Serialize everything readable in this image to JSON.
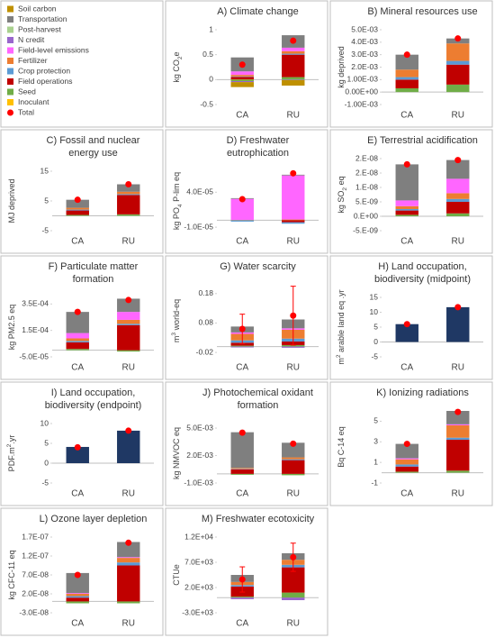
{
  "legend": {
    "series": [
      {
        "name": "Soil carbon",
        "color": "#bf9000"
      },
      {
        "name": "Transportation",
        "color": "#7f7f7f"
      },
      {
        "name": "Post-harvest",
        "color": "#a9d18e"
      },
      {
        "name": "N credit",
        "color": "#9966cc"
      },
      {
        "name": "Field-level emissions",
        "color": "#ff66ff"
      },
      {
        "name": "Fertilizer",
        "color": "#ed7d31"
      },
      {
        "name": "Crop protection",
        "color": "#5b9bd5"
      },
      {
        "name": "Field operations",
        "color": "#c00000"
      },
      {
        "name": "Seed",
        "color": "#70ad47"
      },
      {
        "name": "Inoculant",
        "color": "#ffc000"
      }
    ],
    "total": {
      "name": "Total",
      "color": "#ff0000"
    }
  },
  "chart_data": [
    {
      "type": "stacked_bar",
      "title": [
        "A) Climate change"
      ],
      "ylabel": [
        {
          "text": "kg CO"
        },
        {
          "text": "2",
          "shift": "sub"
        },
        {
          "text": "e"
        }
      ],
      "categories": [
        "CA",
        "RU"
      ],
      "ylim": [
        -0.5,
        1
      ],
      "yticks": [
        -0.5,
        0,
        0.5,
        1
      ],
      "series": [
        {
          "values": [
            -0.1,
            -0.11
          ]
        },
        {
          "values": [
            0.28,
            0.25
          ]
        },
        {
          "values": [
            0,
            0
          ]
        },
        {
          "values": [
            -0.02,
            -0.01
          ]
        },
        {
          "values": [
            0.07,
            0.07
          ]
        },
        {
          "values": [
            0.03,
            0.05
          ]
        },
        {
          "values": [
            0.01,
            0.02
          ]
        },
        {
          "values": [
            0.05,
            0.45
          ]
        },
        {
          "values": [
            -0.03,
            0.05
          ]
        },
        {
          "values": [
            0.005,
            0
          ]
        }
      ],
      "total": [
        0.3,
        0.78
      ]
    },
    {
      "type": "stacked_bar",
      "title": [
        "B) Mineral resources use"
      ],
      "ylabel": [
        {
          "text": "kg deprived"
        }
      ],
      "categories": [
        "CA",
        "RU"
      ],
      "ylim": [
        -0.001,
        0.005
      ],
      "yticks": [
        {
          "value": -0.001,
          "label": "-1.00E-03"
        },
        {
          "value": 0,
          "label": "0.00E+00"
        },
        {
          "value": 0.001,
          "label": "1.00E-03"
        },
        {
          "value": 0.002,
          "label": "2.0E-03"
        },
        {
          "value": 0.003,
          "label": "3.0E-03"
        },
        {
          "value": 0.004,
          "label": "4.0E-03"
        },
        {
          "value": 0.005,
          "label": "5.0E-03"
        }
      ],
      "series": [
        {
          "values": [
            0,
            0
          ]
        },
        {
          "values": [
            0.0012,
            0.0004
          ]
        },
        {
          "values": [
            0,
            0
          ]
        },
        {
          "values": [
            0,
            0
          ]
        },
        {
          "values": [
            0,
            0
          ]
        },
        {
          "values": [
            0.0006,
            0.0014
          ]
        },
        {
          "values": [
            0.0002,
            0.0003
          ]
        },
        {
          "values": [
            0.0007,
            0.0016
          ]
        },
        {
          "values": [
            0.0003,
            0.0006
          ]
        },
        {
          "values": [
            0,
            0
          ]
        }
      ],
      "total": [
        0.003,
        0.0043
      ]
    },
    {
      "type": "stacked_bar",
      "title": [
        "C) Fossil and nuclear",
        "energy use"
      ],
      "ylabel": [
        {
          "text": "MJ deprived"
        }
      ],
      "categories": [
        "CA",
        "RU"
      ],
      "ylim": [
        -5,
        15
      ],
      "yticks": [
        -5,
        5,
        15
      ],
      "series": [
        {
          "values": [
            0,
            0
          ]
        },
        {
          "values": [
            2.7,
            2.5
          ]
        },
        {
          "values": [
            0,
            0
          ]
        },
        {
          "values": [
            0,
            0
          ]
        },
        {
          "values": [
            0,
            0
          ]
        },
        {
          "values": [
            0.6,
            0.8
          ]
        },
        {
          "values": [
            0.3,
            0.3
          ]
        },
        {
          "values": [
            1.5,
            6.5
          ]
        },
        {
          "values": [
            0.3,
            0.5
          ]
        },
        {
          "values": [
            0,
            0
          ]
        }
      ],
      "total": [
        5.4,
        10.6
      ]
    },
    {
      "type": "stacked_bar",
      "title": [
        "D) Freshwater",
        "eutrophication"
      ],
      "ylabel": [
        {
          "text": "kg PO"
        },
        {
          "text": "4",
          "shift": "sub"
        },
        {
          "text": " P-lim eq"
        }
      ],
      "categories": [
        "CA",
        "RU"
      ],
      "ylim": [
        -1.5e-05,
        7e-05
      ],
      "yticks": [
        {
          "value": -1e-05,
          "label": "-1.0E-05"
        },
        {
          "value": 4e-05,
          "label": "4.0E-05"
        }
      ],
      "series": [
        {
          "values": [
            0,
            0
          ]
        },
        {
          "values": [
            1e-06,
            1e-06
          ]
        },
        {
          "values": [
            0,
            0
          ]
        },
        {
          "values": [
            0,
            0
          ]
        },
        {
          "values": [
            3e-05,
            6.3e-05
          ]
        },
        {
          "values": [
            5e-07,
            1e-06
          ]
        },
        {
          "values": [
            -2e-06,
            -2e-06
          ]
        },
        {
          "values": [
            0,
            -3e-06
          ]
        },
        {
          "values": [
            0,
            0
          ]
        },
        {
          "values": [
            0,
            0
          ]
        }
      ],
      "total": [
        3e-05,
        6.7e-05
      ]
    },
    {
      "type": "stacked_bar",
      "title": [
        "E) Terrestrial acidification"
      ],
      "ylabel": [
        {
          "text": "kg SO"
        },
        {
          "text": "2",
          "shift": "sub"
        },
        {
          "text": " eq"
        }
      ],
      "categories": [
        "CA",
        "RU"
      ],
      "ylim": [
        -5e-09,
        2e-08
      ],
      "yticks": [
        {
          "value": -5e-09,
          "label": "-5.E-09"
        },
        {
          "value": 0,
          "label": "0.E+00"
        },
        {
          "value": 5e-09,
          "label": "5.E-09"
        },
        {
          "value": 1e-08,
          "label": "1.E-08"
        },
        {
          "value": 1.5e-08,
          "label": "2.E-08"
        },
        {
          "value": 2e-08,
          "label": "2.E-08"
        }
      ],
      "series": [
        {
          "values": [
            0,
            0
          ]
        },
        {
          "values": [
            1.25e-08,
            6.5e-09
          ]
        },
        {
          "values": [
            0,
            0
          ]
        },
        {
          "values": [
            0,
            0
          ]
        },
        {
          "values": [
            2e-09,
            5e-09
          ]
        },
        {
          "values": [
            1e-09,
            2e-09
          ]
        },
        {
          "values": [
            5e-10,
            1e-09
          ]
        },
        {
          "values": [
            1.5e-09,
            4e-09
          ]
        },
        {
          "values": [
            5e-10,
            1e-09
          ]
        },
        {
          "values": [
            0,
            0
          ]
        }
      ],
      "total": [
        1.8e-08,
        1.95e-08
      ]
    },
    {
      "type": "stacked_bar",
      "title": [
        "F) Particulate matter",
        "formation"
      ],
      "ylabel": [
        {
          "text": "kg PM2.5 eq"
        }
      ],
      "categories": [
        "CA",
        "RU"
      ],
      "ylim": [
        -5e-05,
        0.0004
      ],
      "yticks": [
        {
          "value": -5e-05,
          "label": "-5.0E-05"
        },
        {
          "value": 0.00015,
          "label": "1.5E-04"
        },
        {
          "value": 0.00035,
          "label": "3.5E-04"
        }
      ],
      "series": [
        {
          "values": [
            0,
            0
          ]
        },
        {
          "values": [
            0.00016,
            0.0001
          ]
        },
        {
          "values": [
            0,
            0
          ]
        },
        {
          "values": [
            0,
            0
          ]
        },
        {
          "values": [
            4e-05,
            6e-05
          ]
        },
        {
          "values": [
            2e-05,
            3e-05
          ]
        },
        {
          "values": [
            1e-05,
            1e-05
          ]
        },
        {
          "values": [
            5e-05,
            0.00019
          ]
        },
        {
          "values": [
            1e-05,
            -1e-05
          ]
        },
        {
          "values": [
            0,
            0
          ]
        }
      ],
      "total": [
        0.00029,
        0.00038
      ]
    },
    {
      "type": "stacked_bar",
      "title": [
        "G) Water scarcity"
      ],
      "ylabel": [
        {
          "text": "m"
        },
        {
          "text": "3",
          "shift": "super"
        },
        {
          "text": " world-eq"
        }
      ],
      "categories": [
        "CA",
        "RU"
      ],
      "ylim": [
        -0.035,
        0.21
      ],
      "yticks": [
        -0.02,
        0.08,
        0.18
      ],
      "series": [
        {
          "values": [
            0,
            0
          ]
        },
        {
          "values": [
            0.02,
            0.03
          ]
        },
        {
          "values": [
            0,
            0
          ]
        },
        {
          "values": [
            -0.003,
            -0.004
          ]
        },
        {
          "values": [
            0.005,
            0.005
          ]
        },
        {
          "values": [
            0.022,
            0.03
          ]
        },
        {
          "values": [
            0.008,
            0.01
          ]
        },
        {
          "values": [
            0.01,
            0.012
          ]
        },
        {
          "values": [
            0.003,
            0.005
          ]
        },
        {
          "values": [
            0,
            0
          ]
        }
      ],
      "total": [
        0.06,
        0.105
      ],
      "errors": [
        0.05,
        0.1
      ]
    },
    {
      "type": "bar",
      "title": [
        "H) Land occupation,",
        "biodiversity (midpoint)"
      ],
      "ylabel": [
        {
          "text": "m"
        },
        {
          "text": "2",
          "shift": "super"
        },
        {
          "text": " arable land eq"
        },
        {
          "text": " .yr"
        }
      ],
      "categories": [
        "CA",
        "RU"
      ],
      "ylim": [
        -5,
        15
      ],
      "yticks": [
        -5,
        0,
        5,
        10,
        15
      ],
      "color": "#1f3864",
      "values": [
        6,
        11.7
      ],
      "total": [
        6,
        11.7
      ]
    },
    {
      "type": "bar",
      "title": [
        "I) Land occupation,",
        "biodiversity (endpoint)"
      ],
      "ylabel": [
        {
          "text": "PDF.m"
        },
        {
          "text": "2",
          "shift": "super"
        },
        {
          "text": ".yr"
        }
      ],
      "categories": [
        "CA",
        "RU"
      ],
      "ylim": [
        -5,
        10
      ],
      "yticks": [
        -5,
        0,
        5,
        10
      ],
      "color": "#1f3864",
      "values": [
        4.1,
        8.2
      ],
      "total": [
        4,
        8.2
      ]
    },
    {
      "type": "stacked_bar",
      "title": [
        "J) Photochemical oxidant",
        "formation"
      ],
      "ylabel": [
        {
          "text": "kg NMVOC eq"
        }
      ],
      "categories": [
        "CA",
        "RU"
      ],
      "ylim": [
        -0.001,
        0.0055
      ],
      "yticks": [
        {
          "value": -0.001,
          "label": "-1.0E-03"
        },
        {
          "value": 0.002,
          "label": "2.0E-03"
        },
        {
          "value": 0.005,
          "label": "5.0E-03"
        }
      ],
      "series": [
        {
          "values": [
            0,
            0
          ]
        },
        {
          "values": [
            0.0039,
            0.0016
          ]
        },
        {
          "values": [
            0,
            0
          ]
        },
        {
          "values": [
            0,
            0
          ]
        },
        {
          "values": [
            0,
            0
          ]
        },
        {
          "values": [
            0.0001,
            0.0002
          ]
        },
        {
          "values": [
            5e-05,
            0.0001
          ]
        },
        {
          "values": [
            0.0005,
            0.0015
          ]
        },
        {
          "values": [
            -0.0001,
            -0.00015
          ]
        },
        {
          "values": [
            0,
            0
          ]
        }
      ],
      "total": [
        0.0045,
        0.0033
      ]
    },
    {
      "type": "stacked_bar",
      "title": [
        "K) Ionizing radiations"
      ],
      "ylabel": [
        {
          "text": "Bq C-14 eq"
        }
      ],
      "categories": [
        "CA",
        "RU"
      ],
      "ylim": [
        -1,
        6
      ],
      "yticks": [
        -1,
        1,
        3,
        5
      ],
      "series": [
        {
          "values": [
            0,
            0
          ]
        },
        {
          "values": [
            1.4,
            1.3
          ]
        },
        {
          "values": [
            0,
            0
          ]
        },
        {
          "values": [
            0,
            0
          ]
        },
        {
          "values": [
            0.1,
            0.1
          ]
        },
        {
          "values": [
            0.5,
            1.2
          ]
        },
        {
          "values": [
            0.2,
            0.2
          ]
        },
        {
          "values": [
            0.5,
            3
          ]
        },
        {
          "values": [
            0.1,
            0.2
          ]
        },
        {
          "values": [
            0,
            0
          ]
        }
      ],
      "total": [
        2.8,
        5.9
      ]
    },
    {
      "type": "stacked_bar",
      "title": [
        "L) Ozone layer depletion"
      ],
      "ylabel": [
        {
          "text": "kg CFC-11 eq"
        }
      ],
      "categories": [
        "CA",
        "RU"
      ],
      "ylim": [
        -3e-08,
        1.7e-07
      ],
      "yticks": [
        {
          "value": -3e-08,
          "label": "-3.0E-08"
        },
        {
          "value": 2e-08,
          "label": "2.0E-08"
        },
        {
          "value": 7e-08,
          "label": "7.0E-08"
        },
        {
          "value": 1.2e-07,
          "label": "1.2E-07"
        },
        {
          "value": 1.7e-07,
          "label": "1.7E-07"
        }
      ],
      "series": [
        {
          "values": [
            0,
            0
          ]
        },
        {
          "values": [
            5.3e-08,
            4e-08
          ]
        },
        {
          "values": [
            0,
            0
          ]
        },
        {
          "values": [
            0,
            0
          ]
        },
        {
          "values": [
            2e-09,
            2e-09
          ]
        },
        {
          "values": [
            6e-09,
            1.2e-08
          ]
        },
        {
          "values": [
            4e-09,
            8e-09
          ]
        },
        {
          "values": [
            1e-08,
            9.5e-08
          ]
        },
        {
          "values": [
            -5e-09,
            -5e-09
          ]
        },
        {
          "values": [
            0,
            0
          ]
        }
      ],
      "total": [
        7e-08,
        1.55e-07
      ]
    },
    {
      "type": "stacked_bar",
      "title": [
        "M) Freshwater ecotoxicity"
      ],
      "ylabel": [
        {
          "text": "CTUe"
        }
      ],
      "categories": [
        "CA",
        "RU"
      ],
      "ylim": [
        -3000,
        12000
      ],
      "yticks": [
        {
          "value": -3000,
          "label": "-3.0E+03"
        },
        {
          "value": 2000,
          "label": "2.0E+03"
        },
        {
          "value": 7000,
          "label": "7.0E+03"
        },
        {
          "value": 12000,
          "label": "1.2E+04"
        }
      ],
      "series": [
        {
          "values": [
            0,
            0
          ]
        },
        {
          "values": [
            1400,
            1300
          ]
        },
        {
          "values": [
            0,
            0
          ]
        },
        {
          "values": [
            -300,
            -500
          ]
        },
        {
          "values": [
            0,
            0
          ]
        },
        {
          "values": [
            600,
            1000
          ]
        },
        {
          "values": [
            300,
            500
          ]
        },
        {
          "values": [
            2000,
            5000
          ]
        },
        {
          "values": [
            200,
            1000
          ]
        },
        {
          "values": [
            0,
            0
          ]
        }
      ],
      "total": [
        3600,
        8000
      ],
      "errors": [
        2500,
        2800
      ]
    }
  ]
}
